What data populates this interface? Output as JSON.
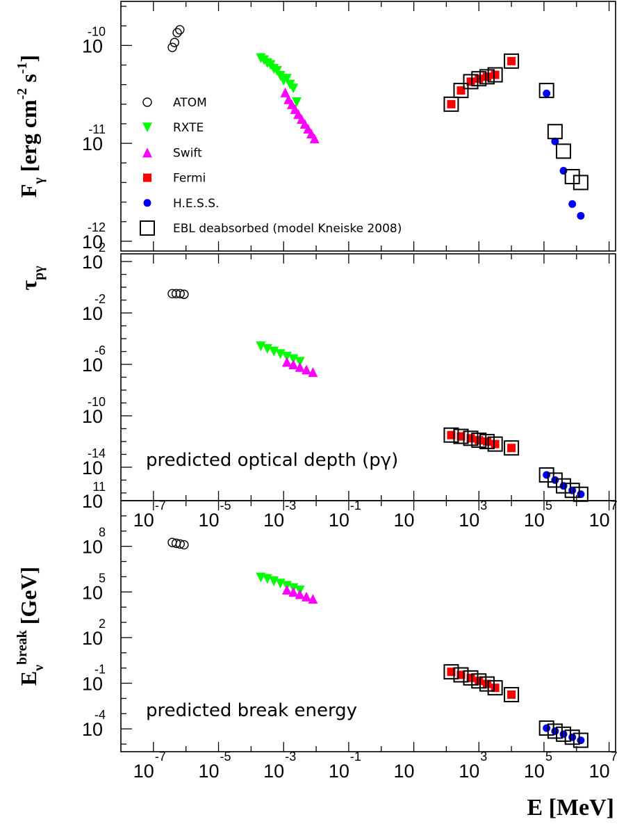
{
  "chart_data": [
    {
      "type": "scatter",
      "name": "flux",
      "ylabel": {
        "main": "F",
        "sub": "γ",
        "rest": " [erg cm",
        "sup1": "-2",
        "mid": " s",
        "sup2": "-1",
        "end": "]"
      },
      "xlim": [
        -8,
        7.2
      ],
      "ylim": [
        -12.1,
        -9.55
      ],
      "yticks": [
        {
          "base": "10",
          "exp": "-10",
          "v": -10
        },
        {
          "base": "10",
          "exp": "-11",
          "v": -11
        },
        {
          "base": "10",
          "exp": "-12",
          "v": -12
        }
      ],
      "legend": {
        "position": "left",
        "entries": [
          {
            "label": "ATOM",
            "marker": "open-circle",
            "color": "#000000"
          },
          {
            "label": "RXTE",
            "marker": "triangle-down",
            "color": "#00ff00"
          },
          {
            "label": "Swift",
            "marker": "triangle-up",
            "color": "#ff00ff"
          },
          {
            "label": "Fermi",
            "marker": "square",
            "color": "#ff0000"
          },
          {
            "label": "H.E.S.S.",
            "marker": "circle",
            "color": "#0000ff"
          },
          {
            "label": "EBL deabsorbed (model Kneiske 2008)",
            "marker": "open-square",
            "color": "#000000"
          }
        ]
      },
      "series": [
        {
          "marker": "open-circle",
          "color": "#000000",
          "x": [
            -6.42,
            -6.35,
            -6.27,
            -6.19
          ],
          "y": [
            -10.02,
            -9.97,
            -9.87,
            -9.84
          ]
        },
        {
          "marker": "triangle-down",
          "color": "#00ff00",
          "x": [
            -3.7,
            -3.6,
            -3.5,
            -3.4,
            -3.3,
            -3.2,
            -3.1,
            -3.0,
            -2.9,
            -2.8,
            -2.7,
            -2.6
          ],
          "y": [
            -10.13,
            -10.15,
            -10.18,
            -10.2,
            -10.24,
            -10.26,
            -10.31,
            -10.36,
            -10.34,
            -10.4,
            -10.44,
            -10.58
          ]
        },
        {
          "marker": "triangle-up",
          "color": "#ff00ff",
          "x": [
            -2.95,
            -2.85,
            -2.75,
            -2.65,
            -2.55,
            -2.45,
            -2.35,
            -2.25,
            -2.15,
            -2.05
          ],
          "y": [
            -10.48,
            -10.55,
            -10.6,
            -10.65,
            -10.7,
            -10.75,
            -10.8,
            -10.85,
            -10.9,
            -10.95
          ]
        },
        {
          "marker": "square",
          "color": "#ff0000",
          "x": [
            2.15,
            2.45,
            2.75,
            3.0,
            3.25,
            3.5,
            4.0
          ],
          "y": [
            -10.6,
            -10.46,
            -10.37,
            -10.34,
            -10.32,
            -10.3,
            -10.16
          ]
        },
        {
          "marker": "circle",
          "color": "#0000ff",
          "x": [
            5.08,
            5.34,
            5.6,
            5.87,
            6.13
          ],
          "y": [
            -10.49,
            -10.98,
            -11.28,
            -11.62,
            -11.74
          ]
        },
        {
          "marker": "open-square",
          "color": "#000000",
          "x": [
            2.15,
            2.45,
            2.75,
            3.0,
            3.25,
            3.5,
            4.0,
            5.08,
            5.34,
            5.6,
            5.87,
            6.13
          ],
          "y": [
            -10.6,
            -10.46,
            -10.37,
            -10.34,
            -10.32,
            -10.3,
            -10.16,
            -10.46,
            -10.88,
            -11.08,
            -11.34,
            -11.4
          ]
        }
      ]
    },
    {
      "type": "scatter",
      "name": "optical-depth",
      "ylabel": {
        "main": "τ",
        "sub": "pγ"
      },
      "annotation": "predicted optical depth (pγ)",
      "xlim": [
        -8,
        7.2
      ],
      "ylim": [
        -16.6,
        2.6
      ],
      "xticks": [
        {
          "base": "10",
          "exp": "-7",
          "v": -7
        },
        {
          "base": "10",
          "exp": "-5",
          "v": -5
        },
        {
          "base": "10",
          "exp": "-3",
          "v": -3
        },
        {
          "base": "10",
          "exp": "-1",
          "v": -1
        },
        {
          "base": "10",
          "exp": "",
          "v": 1
        },
        {
          "base": "10",
          "exp": "3",
          "v": 3
        },
        {
          "base": "10",
          "exp": "5",
          "v": 5
        },
        {
          "base": "10",
          "exp": "7",
          "v": 7
        }
      ],
      "yticks": [
        {
          "base": "10",
          "exp": "2",
          "v": 2
        },
        {
          "base": "10",
          "exp": "-2",
          "v": -2
        },
        {
          "base": "10",
          "exp": "-6",
          "v": -6
        },
        {
          "base": "10",
          "exp": "-10",
          "v": -10
        },
        {
          "base": "10",
          "exp": "-14",
          "v": -14
        }
      ],
      "series": [
        {
          "marker": "open-circle",
          "color": "#000000",
          "x": [
            -6.42,
            -6.3,
            -6.18,
            -6.06
          ],
          "y": [
            -0.5,
            -0.5,
            -0.5,
            -0.55
          ]
        },
        {
          "marker": "triangle-down",
          "color": "#00ff00",
          "x": [
            -3.7,
            -3.5,
            -3.3,
            -3.1,
            -2.9,
            -2.7,
            -2.5
          ],
          "y": [
            -4.6,
            -4.8,
            -5.0,
            -5.2,
            -5.4,
            -5.6,
            -5.8
          ]
        },
        {
          "marker": "triangle-up",
          "color": "#ff00ff",
          "x": [
            -2.9,
            -2.7,
            -2.5,
            -2.3,
            -2.1
          ],
          "y": [
            -5.8,
            -6.0,
            -6.2,
            -6.4,
            -6.6
          ]
        },
        {
          "marker": "square",
          "color": "#ff0000",
          "x": [
            2.15,
            2.45,
            2.75,
            3.0,
            3.25,
            3.5,
            4.0
          ],
          "y": [
            -11.5,
            -11.6,
            -11.75,
            -11.9,
            -12.0,
            -12.2,
            -12.5
          ]
        },
        {
          "marker": "circle",
          "color": "#0000ff",
          "x": [
            5.08,
            5.34,
            5.6,
            5.87,
            6.13
          ],
          "y": [
            -14.6,
            -15.0,
            -15.45,
            -15.8,
            -16.1
          ]
        },
        {
          "marker": "open-square",
          "color": "#000000",
          "x": [
            2.15,
            2.45,
            2.75,
            3.0,
            3.25,
            3.5,
            4.0,
            5.08,
            5.34,
            5.6,
            5.87,
            6.13
          ],
          "y": [
            -11.5,
            -11.6,
            -11.75,
            -11.9,
            -12.0,
            -12.2,
            -12.5,
            -14.6,
            -15.0,
            -15.45,
            -15.8,
            -16.1
          ]
        }
      ]
    },
    {
      "type": "scatter",
      "name": "break-energy",
      "ylabel": {
        "main": "E",
        "sub": "ν",
        "sup": "break",
        "rest": " [GeV]"
      },
      "xlabel": "E [MeV]",
      "annotation": "predicted break energy",
      "xlim": [
        -8,
        7.2
      ],
      "ylim": [
        -5.5,
        11.0
      ],
      "xticks": [
        {
          "base": "10",
          "exp": "-7",
          "v": -7
        },
        {
          "base": "10",
          "exp": "-5",
          "v": -5
        },
        {
          "base": "10",
          "exp": "-3",
          "v": -3
        },
        {
          "base": "10",
          "exp": "-1",
          "v": -1
        },
        {
          "base": "10",
          "exp": "",
          "v": 1
        },
        {
          "base": "10",
          "exp": "3",
          "v": 3
        },
        {
          "base": "10",
          "exp": "5",
          "v": 5
        },
        {
          "base": "10",
          "exp": "7",
          "v": 7
        }
      ],
      "yticks": [
        {
          "base": "10",
          "exp": "11",
          "v": 11
        },
        {
          "base": "10",
          "exp": "8",
          "v": 8
        },
        {
          "base": "10",
          "exp": "5",
          "v": 5
        },
        {
          "base": "10",
          "exp": "2",
          "v": 2
        },
        {
          "base": "10",
          "exp": "-1",
          "v": -1
        },
        {
          "base": "10",
          "exp": "-4",
          "v": -4
        }
      ],
      "series": [
        {
          "marker": "open-circle",
          "color": "#000000",
          "x": [
            -6.42,
            -6.3,
            -6.18,
            -6.06
          ],
          "y": [
            8.25,
            8.2,
            8.15,
            8.1
          ]
        },
        {
          "marker": "triangle-down",
          "color": "#00ff00",
          "x": [
            -3.7,
            -3.5,
            -3.3,
            -3.1,
            -2.9,
            -2.7,
            -2.5
          ],
          "y": [
            5.95,
            5.85,
            5.7,
            5.55,
            5.4,
            5.25,
            5.1
          ]
        },
        {
          "marker": "triangle-up",
          "color": "#ff00ff",
          "x": [
            -2.9,
            -2.7,
            -2.5,
            -2.3,
            -2.1
          ],
          "y": [
            5.15,
            5.0,
            4.85,
            4.7,
            4.55
          ]
        },
        {
          "marker": "square",
          "color": "#ff0000",
          "x": [
            2.15,
            2.45,
            2.75,
            3.0,
            3.25,
            3.5,
            4.0
          ],
          "y": [
            -0.25,
            -0.45,
            -0.65,
            -0.85,
            -1.05,
            -1.3,
            -1.75
          ]
        },
        {
          "marker": "circle",
          "color": "#0000ff",
          "x": [
            5.08,
            5.34,
            5.6,
            5.87,
            6.13
          ],
          "y": [
            -3.95,
            -4.15,
            -4.35,
            -4.55,
            -4.75
          ]
        },
        {
          "marker": "open-square",
          "color": "#000000",
          "x": [
            2.15,
            2.45,
            2.75,
            3.0,
            3.25,
            3.5,
            4.0,
            5.08,
            5.34,
            5.6,
            5.87,
            6.13
          ],
          "y": [
            -0.25,
            -0.45,
            -0.65,
            -0.85,
            -1.05,
            -1.3,
            -1.75,
            -3.95,
            -4.15,
            -4.35,
            -4.55,
            -4.75
          ]
        }
      ]
    }
  ]
}
